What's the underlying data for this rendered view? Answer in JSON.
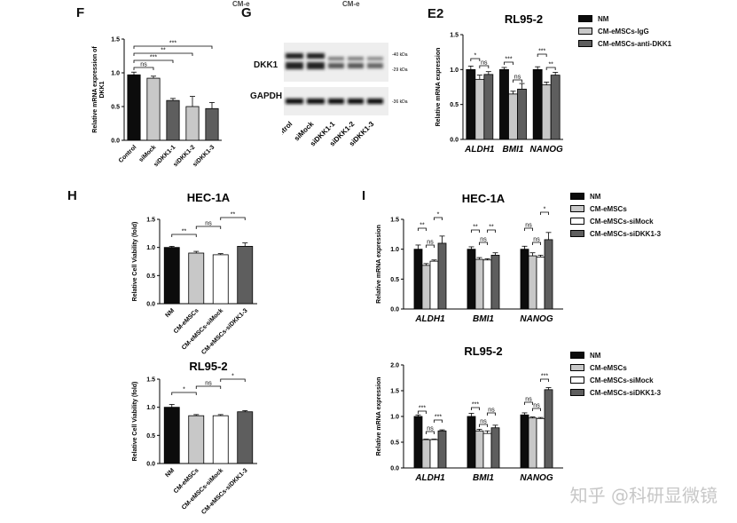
{
  "watermark": "知乎 @科研显微镜",
  "top_cut_left": "CM-e",
  "top_cut_right": "CM-e",
  "colors": {
    "black": "#0c0c0c",
    "light": "#c8c8c8",
    "white": "#ffffff",
    "dark": "#5e5e5e"
  },
  "panels": {
    "F": {
      "letter": "F"
    },
    "G": {
      "letter": "G",
      "band_label_dkk1": "DKK1",
      "band_label_gapdh": "GAPDH",
      "kda_40": "-40 kDa",
      "kda_29": "-29 kDa",
      "kda_36": "-36 kDa",
      "lanes": [
        "Control",
        "siMock",
        "siDKK1-1",
        "siDKK1-2",
        "siDKK1-3"
      ]
    },
    "E2": {
      "letter": "E2"
    },
    "H": {
      "letter": "H"
    },
    "I": {
      "letter": "I"
    }
  },
  "legends": {
    "E2": [
      "NM",
      "CM-eMSCs-IgG",
      "CM-eMSCs-anti-DKK1"
    ],
    "I_top": [
      "NM",
      "CM-eMSCs",
      "CM-eMSCs-siMock",
      "CM-eMSCs-siDKK1-3"
    ],
    "I_bottom": [
      "NM",
      "CM-eMSCs",
      "CM-eMSCs-siMock",
      "CM-eMSCs-siDKK1-3"
    ]
  },
  "chart_data": [
    {
      "id": "F",
      "type": "bar",
      "title": "",
      "ylabel": "Relative mRNA expression of DKK1",
      "ylim": [
        0,
        1.5
      ],
      "yticks": [
        "0.0",
        "0.5",
        "1.0",
        "1.5"
      ],
      "categories": [
        "Control",
        "siMock",
        "siDKK1-1",
        "siDKK1-2",
        "siDKK1-3"
      ],
      "values": [
        0.97,
        0.92,
        0.59,
        0.5,
        0.47
      ],
      "errors": [
        0.04,
        0.03,
        0.03,
        0.15,
        0.09
      ],
      "colors": [
        "#0c0c0c",
        "#c8c8c8",
        "#5e5e5e",
        "#c8c8c8",
        "#5e5e5e"
      ],
      "significance": [
        "***",
        "**",
        "***",
        "ns"
      ]
    },
    {
      "id": "E2",
      "type": "bar",
      "title": "RL95-2",
      "ylabel": "Relative mRNA expression",
      "ylim": [
        0,
        1.5
      ],
      "yticks": [
        "0.0",
        "0.5",
        "1.0",
        "1.5"
      ],
      "categories": [
        "ALDH1",
        "BMI1",
        "NANOG"
      ],
      "series": [
        {
          "name": "NM",
          "values": [
            1.0,
            1.0,
            1.0
          ],
          "errors": [
            0.05,
            0.03,
            0.04
          ]
        },
        {
          "name": "CM-eMSCs-IgG",
          "values": [
            0.86,
            0.65,
            0.78
          ],
          "errors": [
            0.06,
            0.04,
            0.04
          ]
        },
        {
          "name": "CM-eMSCs-anti-DKK1",
          "values": [
            0.93,
            0.72,
            0.92
          ],
          "errors": [
            0.04,
            0.08,
            0.04
          ]
        }
      ],
      "significance": [
        "*",
        "ns",
        "***",
        "ns",
        "***",
        "**"
      ]
    },
    {
      "id": "H1",
      "type": "bar",
      "title": "HEC-1A",
      "ylabel": "Relative Cell Viability (fold)",
      "ylim": [
        0,
        1.5
      ],
      "yticks": [
        "0.0",
        "0.5",
        "1.0",
        "1.5"
      ],
      "categories": [
        "NM",
        "CM-eMSCs",
        "CM-eMSCs-siMock",
        "CM-eMSCs-siDKK1-3"
      ],
      "values": [
        1.0,
        0.9,
        0.87,
        1.02
      ],
      "errors": [
        0.02,
        0.03,
        0.02,
        0.06
      ],
      "colors": [
        "#0c0c0c",
        "#c8c8c8",
        "#ffffff",
        "#5e5e5e"
      ],
      "significance": [
        "**",
        "ns",
        "**"
      ]
    },
    {
      "id": "H2",
      "type": "bar",
      "title": "RL95-2",
      "ylabel": "Relative Cell Viability (fold)",
      "ylim": [
        0,
        1.5
      ],
      "yticks": [
        "0.0",
        "0.5",
        "1.0",
        "1.5"
      ],
      "categories": [
        "NM",
        "CM-eMSCs",
        "CM-eMSCs-siMock",
        "CM-eMSCs-siDKK1-3"
      ],
      "values": [
        1.0,
        0.85,
        0.85,
        0.92
      ],
      "errors": [
        0.05,
        0.02,
        0.02,
        0.02
      ],
      "colors": [
        "#0c0c0c",
        "#c8c8c8",
        "#ffffff",
        "#5e5e5e"
      ],
      "significance": [
        "*",
        "ns",
        "*"
      ]
    },
    {
      "id": "I1",
      "type": "bar",
      "title": "HEC-1A",
      "ylabel": "Relative mRNA expression",
      "ylim": [
        0,
        1.5
      ],
      "yticks": [
        "0.0",
        "0.5",
        "1.0",
        "1.5"
      ],
      "categories": [
        "ALDH1",
        "BMI1",
        "NANOG"
      ],
      "series": [
        {
          "name": "NM",
          "values": [
            1.0,
            1.0,
            1.0
          ],
          "errors": [
            0.07,
            0.04,
            0.05
          ]
        },
        {
          "name": "CM-eMSCs",
          "values": [
            0.73,
            0.83,
            0.89
          ],
          "errors": [
            0.03,
            0.03,
            0.05
          ]
        },
        {
          "name": "CM-eMSCs-siMock",
          "values": [
            0.8,
            0.82,
            0.87
          ],
          "errors": [
            0.02,
            0.02,
            0.03
          ]
        },
        {
          "name": "CM-eMSCs-siDKK1-3",
          "values": [
            1.1,
            0.9,
            1.16
          ],
          "errors": [
            0.12,
            0.04,
            0.12
          ]
        }
      ],
      "significance": [
        "**",
        "ns",
        "*",
        "**",
        "ns",
        "**",
        "ns",
        "ns",
        "*"
      ]
    },
    {
      "id": "I2",
      "type": "bar",
      "title": "RL95-2",
      "ylabel": "Relative mRNA expression",
      "ylim": [
        0,
        2.0
      ],
      "yticks": [
        "0.0",
        "0.5",
        "1.0",
        "1.5",
        "2.0"
      ],
      "categories": [
        "ALDH1",
        "BMI1",
        "NANOG"
      ],
      "series": [
        {
          "name": "NM",
          "values": [
            1.0,
            1.0,
            1.03
          ],
          "errors": [
            0.03,
            0.06,
            0.04
          ]
        },
        {
          "name": "CM-eMSCs",
          "values": [
            0.55,
            0.72,
            0.97
          ],
          "errors": [
            0.01,
            0.03,
            0.02
          ]
        },
        {
          "name": "CM-eMSCs-siMock",
          "values": [
            0.55,
            0.67,
            0.96
          ],
          "errors": [
            0.01,
            0.05,
            0.02
          ]
        },
        {
          "name": "CM-eMSCs-siDKK1-3",
          "values": [
            0.72,
            0.78,
            1.52
          ],
          "errors": [
            0.02,
            0.05,
            0.04
          ]
        }
      ],
      "significance": [
        "***",
        "ns",
        "***",
        "***",
        "ns",
        "ns",
        "ns",
        "ns",
        "***"
      ]
    }
  ]
}
